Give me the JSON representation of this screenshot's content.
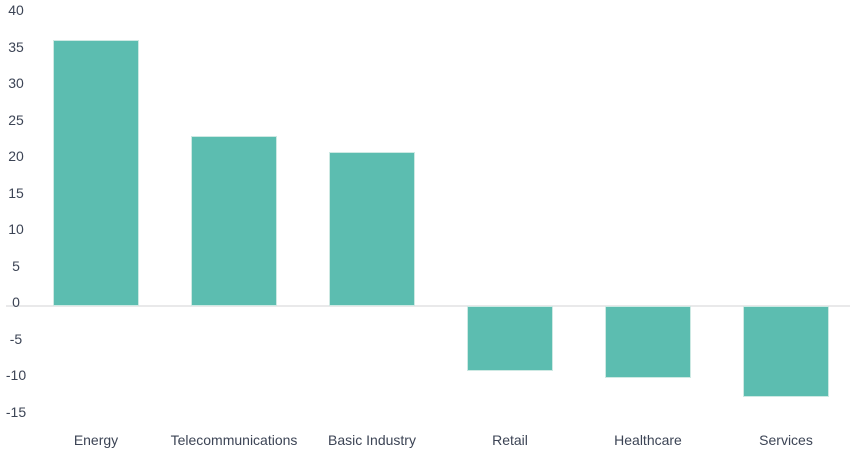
{
  "chart_data": {
    "type": "bar",
    "title": "",
    "xlabel": "",
    "ylabel": "",
    "categories": [
      "Energy",
      "Telecommunications",
      "Basic Industry",
      "Retail",
      "Healthcare",
      "Services"
    ],
    "values": [
      36.4,
      23.3,
      21.1,
      -8.9,
      -9.9,
      -12.5
    ],
    "ylim": [
      -15,
      40
    ],
    "yticks": [
      40,
      35,
      30,
      25,
      20,
      15,
      10,
      5,
      0,
      -5,
      -10,
      -15
    ],
    "grid": "zero-line-only",
    "legend": "none",
    "bar_color": "#5cbdb0",
    "bar_border_color": "#cde9e3",
    "zero_line_color": "#e9e9ea",
    "label_color": "#3c4455",
    "background": "#ffffff"
  }
}
